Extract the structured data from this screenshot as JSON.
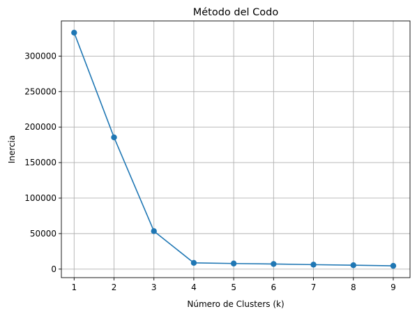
{
  "chart_data": {
    "type": "line",
    "title": "Método del Codo",
    "xlabel": "Número de Clusters (k)",
    "ylabel": "Inercia",
    "x": [
      1,
      2,
      3,
      4,
      5,
      6,
      7,
      8,
      9
    ],
    "series": [
      {
        "values": [
          333000,
          185500,
          53500,
          8800,
          7900,
          7200,
          6300,
          5500,
          4600
        ],
        "color": "#1f77b4",
        "marker": "circle"
      }
    ],
    "xticks": [
      1,
      2,
      3,
      4,
      5,
      6,
      7,
      8,
      9
    ],
    "yticks": [
      0,
      50000,
      100000,
      150000,
      200000,
      250000,
      300000
    ],
    "xlim": [
      0.68,
      9.42
    ],
    "ylim": [
      -12000,
      349500
    ],
    "grid": true
  }
}
